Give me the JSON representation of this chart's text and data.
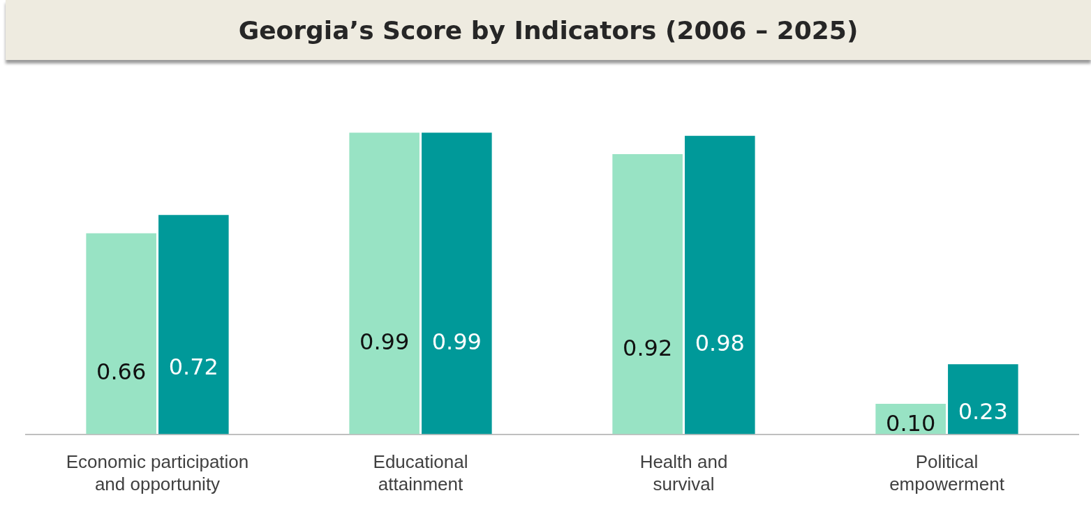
{
  "chart_data": {
    "type": "bar",
    "title": "Georgia’s Score by Indicators (2006 – 2025)",
    "categories": [
      "Economic participation and opportunity",
      "Educational attainment",
      "Health and survival",
      "Political empowerment"
    ],
    "series": [
      {
        "color": "#98e3c4",
        "values": [
          0.66,
          0.99,
          0.92,
          0.1
        ],
        "value_labels": [
          "0.66",
          "0.99",
          "0.92",
          "0.10"
        ]
      },
      {
        "color": "#009999",
        "values": [
          0.72,
          0.99,
          0.98,
          0.23
        ],
        "value_labels": [
          "0.72",
          "0.99",
          "0.98",
          "0.23"
        ]
      }
    ],
    "tick_labels": "x",
    "grid": false,
    "legend": false
  }
}
